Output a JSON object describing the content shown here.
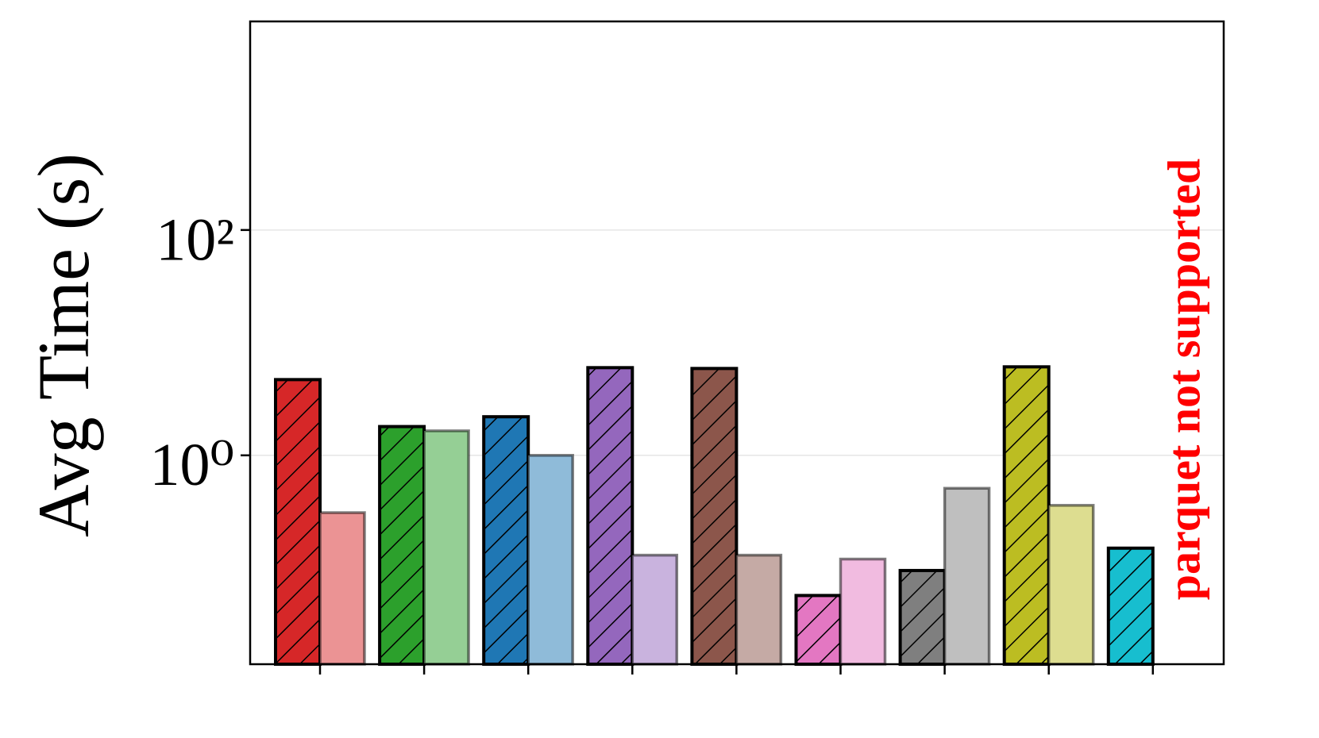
{
  "chart_data": {
    "type": "bar",
    "y_label": "Avg Time (s)",
    "annotation": "parquet not supported",
    "annotation_color": "#ff0000",
    "categories": [
      null,
      null,
      null,
      null,
      null,
      null,
      null,
      null,
      null
    ],
    "series": [
      {
        "hatch": true,
        "colors": [
          "#d62728",
          "#2ca02c",
          "#1f77b4",
          "#9467bd",
          "#8c564b",
          "#e377c2",
          "#7f7f7f",
          "#bcbd22",
          "#17becf"
        ],
        "values": [
          4.7,
          1.8,
          2.2,
          6.0,
          5.9,
          0.057,
          0.095,
          6.1,
          0.15
        ]
      },
      {
        "hatch": false,
        "colors": [
          "#eb9394",
          "#95cf95",
          "#8fbbd9",
          "#c9b3de",
          "#c5aaa5",
          "#f1bbe0",
          "#bfbfbf",
          "#dddd90",
          "#8bdee7"
        ],
        "values": [
          0.31,
          1.65,
          1.0,
          0.13,
          0.13,
          0.12,
          0.51,
          0.36,
          null
        ]
      }
    ],
    "log_y": true,
    "ylim": [
      0.014,
      7100
    ],
    "yticks": [
      {
        "value": 1,
        "label": "10⁰"
      },
      {
        "value": 100,
        "label": "10²"
      }
    ],
    "grid": true
  }
}
